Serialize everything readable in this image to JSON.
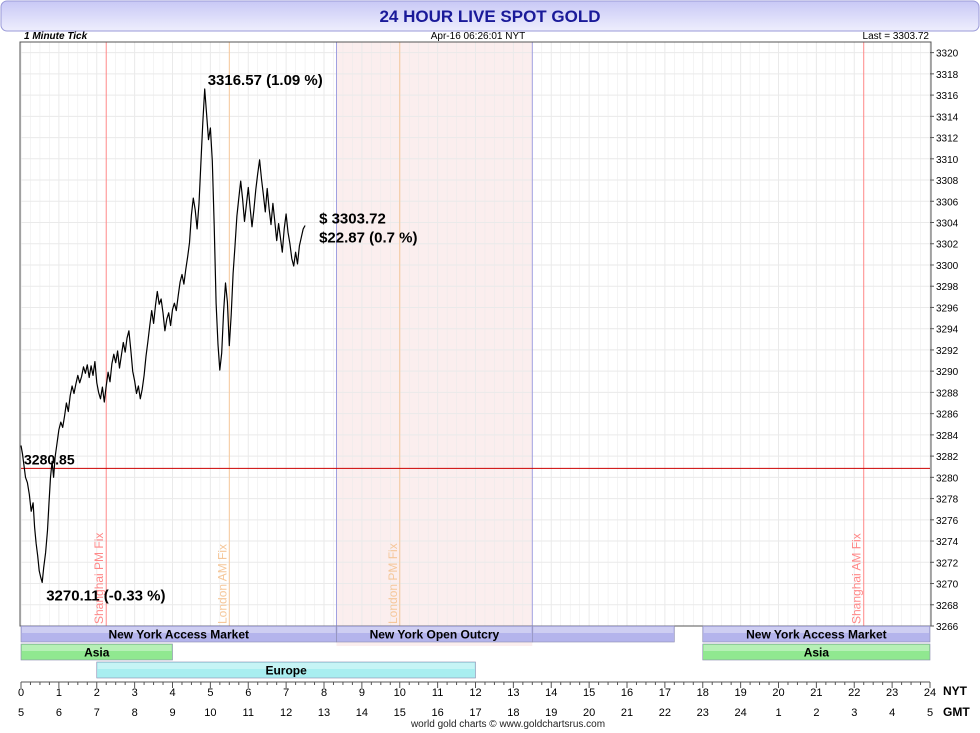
{
  "header": {
    "title": "24 HOUR LIVE SPOT GOLD",
    "tick_mode": "1 Minute Tick",
    "datetime": "Apr-16  06:26:01  NYT",
    "last_label": "Last = 3303.72"
  },
  "footer": {
    "credit": "world gold charts © www.goldchartsrus.com",
    "nyt_axis_label": "NYT",
    "gmt_axis_label": "GMT"
  },
  "colors": {
    "title_bar_top": "#c8c8f6",
    "title_bar_bottom": "#eeeefd",
    "title_text": "#1a1a99",
    "price_line": "#000000",
    "reference_line": "#cc0000",
    "shanghai_fix": "#ff8888",
    "london_fix": "#f5c79a",
    "ny_session": "#b4b4ec",
    "asia_session": "#90e890",
    "europe_session": "#a8eef0",
    "shaded_period": "#fbeeee",
    "grid": "#eaeaea"
  },
  "chart_data": {
    "type": "line",
    "title": "24 HOUR LIVE SPOT GOLD",
    "xlabel": "NYT",
    "ylabel": "",
    "x_unit": "hours (NYT)",
    "xlim": [
      0,
      24
    ],
    "ylim": [
      3266,
      3321
    ],
    "grid": true,
    "y_ticks": [
      3266,
      3268,
      3270,
      3272,
      3274,
      3276,
      3278,
      3280,
      3282,
      3284,
      3286,
      3288,
      3290,
      3292,
      3294,
      3296,
      3298,
      3300,
      3302,
      3304,
      3306,
      3308,
      3310,
      3312,
      3314,
      3316,
      3318,
      3320
    ],
    "nyt_ticks": [
      "0",
      "1",
      "2",
      "3",
      "4",
      "5",
      "6",
      "7",
      "8",
      "9",
      "10",
      "11",
      "12",
      "13",
      "14",
      "15",
      "16",
      "17",
      "18",
      "19",
      "20",
      "21",
      "22",
      "23",
      "24"
    ],
    "gmt_ticks": [
      "5",
      "6",
      "7",
      "8",
      "9",
      "10",
      "11",
      "12",
      "13",
      "14",
      "15",
      "16",
      "17",
      "18",
      "19",
      "20",
      "21",
      "22",
      "23",
      "24",
      "1",
      "2",
      "3",
      "4",
      "5"
    ],
    "series": [
      {
        "points": [
          [
            0.0,
            3283.0
          ],
          [
            0.04,
            3282.2
          ],
          [
            0.08,
            3281.1
          ],
          [
            0.12,
            3280.0
          ],
          [
            0.17,
            3279.5
          ],
          [
            0.22,
            3278.4
          ],
          [
            0.27,
            3276.8
          ],
          [
            0.32,
            3277.6
          ],
          [
            0.36,
            3275.3
          ],
          [
            0.4,
            3273.8
          ],
          [
            0.44,
            3272.6
          ],
          [
            0.48,
            3271.2
          ],
          [
            0.52,
            3270.6
          ],
          [
            0.56,
            3270.11
          ],
          [
            0.6,
            3271.5
          ],
          [
            0.65,
            3272.9
          ],
          [
            0.7,
            3275.0
          ],
          [
            0.74,
            3277.6
          ],
          [
            0.78,
            3280.0
          ],
          [
            0.82,
            3281.5
          ],
          [
            0.86,
            3280.0
          ],
          [
            0.9,
            3281.9
          ],
          [
            0.95,
            3283.2
          ],
          [
            1.0,
            3284.5
          ],
          [
            1.05,
            3285.2
          ],
          [
            1.1,
            3284.7
          ],
          [
            1.15,
            3285.8
          ],
          [
            1.2,
            3287.0
          ],
          [
            1.25,
            3286.2
          ],
          [
            1.3,
            3287.7
          ],
          [
            1.35,
            3288.6
          ],
          [
            1.4,
            3287.9
          ],
          [
            1.45,
            3288.8
          ],
          [
            1.5,
            3289.6
          ],
          [
            1.55,
            3288.9
          ],
          [
            1.6,
            3289.5
          ],
          [
            1.65,
            3290.4
          ],
          [
            1.7,
            3289.8
          ],
          [
            1.75,
            3290.6
          ],
          [
            1.8,
            3289.4
          ],
          [
            1.85,
            3290.5
          ],
          [
            1.9,
            3289.6
          ],
          [
            1.95,
            3290.9
          ],
          [
            2.0,
            3288.9
          ],
          [
            2.05,
            3288.0
          ],
          [
            2.1,
            3287.4
          ],
          [
            2.15,
            3288.5
          ],
          [
            2.2,
            3287.1
          ],
          [
            2.25,
            3288.6
          ],
          [
            2.3,
            3289.9
          ],
          [
            2.35,
            3289.0
          ],
          [
            2.4,
            3290.7
          ],
          [
            2.45,
            3291.6
          ],
          [
            2.5,
            3290.8
          ],
          [
            2.55,
            3291.9
          ],
          [
            2.6,
            3290.3
          ],
          [
            2.65,
            3291.5
          ],
          [
            2.7,
            3292.7
          ],
          [
            2.75,
            3291.8
          ],
          [
            2.8,
            3293.1
          ],
          [
            2.85,
            3293.8
          ],
          [
            2.9,
            3292.0
          ],
          [
            2.95,
            3290.0
          ],
          [
            3.0,
            3289.1
          ],
          [
            3.05,
            3287.9
          ],
          [
            3.1,
            3288.6
          ],
          [
            3.15,
            3287.4
          ],
          [
            3.2,
            3288.3
          ],
          [
            3.25,
            3289.6
          ],
          [
            3.3,
            3291.4
          ],
          [
            3.35,
            3292.8
          ],
          [
            3.4,
            3294.3
          ],
          [
            3.45,
            3295.7
          ],
          [
            3.5,
            3294.5
          ],
          [
            3.55,
            3296.2
          ],
          [
            3.6,
            3297.5
          ],
          [
            3.65,
            3296.3
          ],
          [
            3.7,
            3296.8
          ],
          [
            3.75,
            3295.5
          ],
          [
            3.8,
            3293.8
          ],
          [
            3.85,
            3294.9
          ],
          [
            3.9,
            3295.5
          ],
          [
            3.95,
            3294.3
          ],
          [
            4.0,
            3295.8
          ],
          [
            4.05,
            3296.4
          ],
          [
            4.1,
            3295.7
          ],
          [
            4.15,
            3297.1
          ],
          [
            4.2,
            3298.4
          ],
          [
            4.25,
            3299.1
          ],
          [
            4.3,
            3298.2
          ],
          [
            4.35,
            3299.6
          ],
          [
            4.4,
            3300.8
          ],
          [
            4.45,
            3302.1
          ],
          [
            4.5,
            3304.7
          ],
          [
            4.55,
            3306.3
          ],
          [
            4.6,
            3305.2
          ],
          [
            4.65,
            3303.4
          ],
          [
            4.7,
            3305.8
          ],
          [
            4.75,
            3309.6
          ],
          [
            4.8,
            3313.4
          ],
          [
            4.85,
            3316.57
          ],
          [
            4.9,
            3314.2
          ],
          [
            4.95,
            3311.8
          ],
          [
            5.0,
            3312.9
          ],
          [
            5.05,
            3309.8
          ],
          [
            5.1,
            3303.7
          ],
          [
            5.15,
            3296.4
          ],
          [
            5.2,
            3292.5
          ],
          [
            5.25,
            3290.1
          ],
          [
            5.3,
            3291.7
          ],
          [
            5.35,
            3295.6
          ],
          [
            5.4,
            3298.3
          ],
          [
            5.45,
            3296.5
          ],
          [
            5.5,
            3292.4
          ],
          [
            5.55,
            3295.3
          ],
          [
            5.6,
            3299.2
          ],
          [
            5.65,
            3301.8
          ],
          [
            5.7,
            3304.6
          ],
          [
            5.75,
            3306.3
          ],
          [
            5.8,
            3307.9
          ],
          [
            5.85,
            3306.2
          ],
          [
            5.9,
            3304.1
          ],
          [
            5.95,
            3305.7
          ],
          [
            6.0,
            3307.3
          ],
          [
            6.05,
            3305.4
          ],
          [
            6.1,
            3303.6
          ],
          [
            6.15,
            3305.2
          ],
          [
            6.2,
            3307.1
          ],
          [
            6.25,
            3308.6
          ],
          [
            6.3,
            3309.9
          ],
          [
            6.35,
            3308.1
          ],
          [
            6.4,
            3306.6
          ],
          [
            6.45,
            3305.0
          ],
          [
            6.5,
            3307.2
          ],
          [
            6.55,
            3305.3
          ],
          [
            6.6,
            3303.8
          ],
          [
            6.65,
            3305.8
          ],
          [
            6.7,
            3304.1
          ],
          [
            6.75,
            3302.3
          ],
          [
            6.8,
            3303.9
          ],
          [
            6.85,
            3302.6
          ],
          [
            6.9,
            3301.2
          ],
          [
            6.95,
            3303.4
          ],
          [
            7.0,
            3304.8
          ],
          [
            7.05,
            3303.1
          ],
          [
            7.1,
            3302.0
          ],
          [
            7.15,
            3300.6
          ],
          [
            7.2,
            3299.9
          ],
          [
            7.25,
            3301.2
          ],
          [
            7.3,
            3300.1
          ],
          [
            7.35,
            3301.8
          ],
          [
            7.4,
            3302.6
          ],
          [
            7.45,
            3303.4
          ],
          [
            7.5,
            3303.72
          ]
        ]
      }
    ],
    "reference_line": {
      "value": 3280.85,
      "label": "3280.85"
    },
    "annotations": {
      "high": {
        "x": 4.85,
        "value": 3316.57,
        "label": "3316.57  (1.09 %)"
      },
      "low": {
        "x": 0.56,
        "value": 3270.11,
        "label": "3270.11  (-0.33 %)"
      },
      "last_price": "$ 3303.72",
      "change": "$22.87  (0.7 %)"
    },
    "fix_lines": [
      {
        "label": "Shanghai PM Fix",
        "x": 2.25,
        "color": "shanghai"
      },
      {
        "label": "London AM Fix",
        "x": 5.5,
        "color": "london"
      },
      {
        "label": "London PM Fix",
        "x": 10.0,
        "color": "london"
      },
      {
        "label": "Shanghai AM Fix",
        "x": 22.25,
        "color": "shanghai"
      }
    ],
    "shaded_period": {
      "from": 8.33,
      "to": 13.5
    },
    "sessions": [
      {
        "label": "New York Access Market",
        "from": 0.0,
        "to": 8.33,
        "row": 1,
        "kind": "ny"
      },
      {
        "label": "New York Open Outcry",
        "from": 8.33,
        "to": 13.5,
        "row": 1,
        "kind": "ny"
      },
      {
        "label": "",
        "from": 13.5,
        "to": 17.25,
        "row": 1,
        "kind": "ny"
      },
      {
        "label": "New York Access Market",
        "from": 18.0,
        "to": 24.0,
        "row": 1,
        "kind": "ny"
      },
      {
        "label": "Asia",
        "from": 0.0,
        "to": 4.0,
        "row": 2,
        "kind": "asia"
      },
      {
        "label": "Asia",
        "from": 18.0,
        "to": 24.0,
        "row": 2,
        "kind": "asia"
      },
      {
        "label": "Europe",
        "from": 2.0,
        "to": 12.0,
        "row": 3,
        "kind": "europe"
      }
    ]
  }
}
